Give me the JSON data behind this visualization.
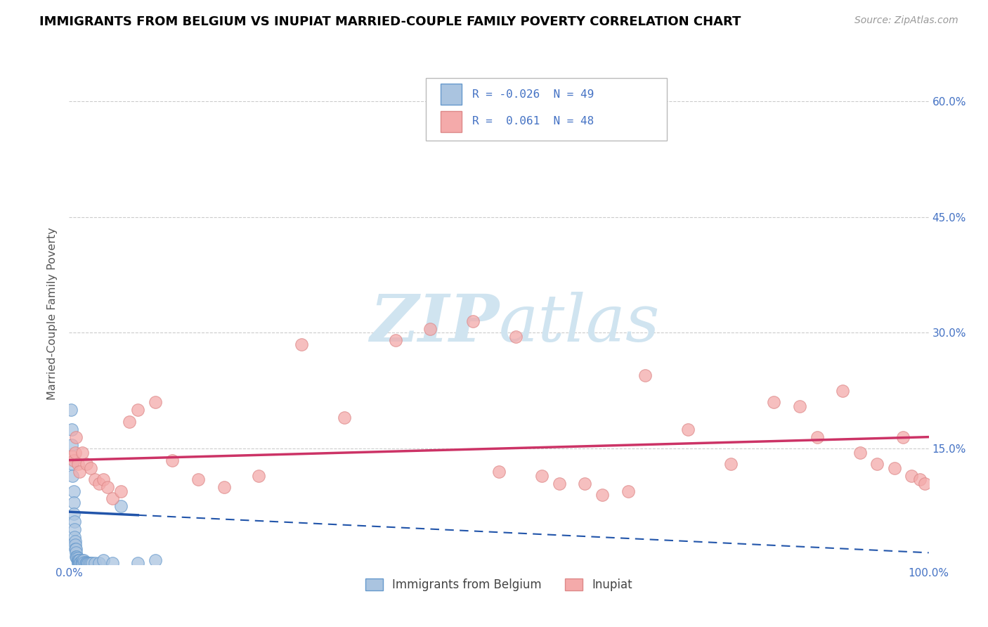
{
  "title": "IMMIGRANTS FROM BELGIUM VS INUPIAT MARRIED-COUPLE FAMILY POVERTY CORRELATION CHART",
  "source": "Source: ZipAtlas.com",
  "ylabel": "Married-Couple Family Poverty",
  "legend_labels": [
    "Immigrants from Belgium",
    "Inupiat"
  ],
  "legend_r": [
    -0.026,
    0.061
  ],
  "legend_n": [
    49,
    48
  ],
  "blue_color": "#aac4e0",
  "pink_color": "#f4aaaa",
  "blue_edge_color": "#6699cc",
  "pink_edge_color": "#dd8888",
  "blue_line_color": "#2255aa",
  "pink_line_color": "#cc3366",
  "xlim": [
    0,
    100
  ],
  "ylim": [
    0,
    65
  ],
  "yticks": [
    0,
    15,
    30,
    45,
    60
  ],
  "grid_color": "#cccccc",
  "background_color": "#ffffff",
  "title_color": "#000000",
  "axis_label_color": "#555555",
  "tick_color": "#888888",
  "right_tick_color": "#4472c4",
  "watermark_color": "#d0e4f0",
  "blue_scatter_x": [
    0.2,
    0.3,
    0.3,
    0.4,
    0.4,
    0.5,
    0.5,
    0.5,
    0.6,
    0.6,
    0.6,
    0.7,
    0.7,
    0.7,
    0.8,
    0.8,
    0.8,
    0.9,
    0.9,
    1.0,
    1.0,
    1.0,
    1.0,
    1.1,
    1.1,
    1.2,
    1.2,
    1.3,
    1.3,
    1.4,
    1.5,
    1.5,
    1.6,
    1.7,
    1.8,
    1.9,
    2.0,
    2.1,
    2.2,
    2.3,
    2.5,
    2.7,
    3.0,
    3.5,
    4.0,
    5.0,
    6.0,
    8.0,
    10.0
  ],
  "blue_scatter_y": [
    20.0,
    17.5,
    15.5,
    13.0,
    11.5,
    9.5,
    8.0,
    6.5,
    5.5,
    4.5,
    3.5,
    3.0,
    2.5,
    2.0,
    2.0,
    1.5,
    1.0,
    1.0,
    0.8,
    0.8,
    0.5,
    0.3,
    0.2,
    0.5,
    0.2,
    0.2,
    0.5,
    0.3,
    0.2,
    0.2,
    0.5,
    0.2,
    0.2,
    0.5,
    0.3,
    0.2,
    0.3,
    0.2,
    0.2,
    0.2,
    0.2,
    0.2,
    0.2,
    0.2,
    0.5,
    0.2,
    7.5,
    0.2,
    0.5
  ],
  "pink_scatter_x": [
    0.3,
    0.5,
    0.7,
    0.8,
    1.0,
    1.2,
    1.5,
    2.0,
    2.5,
    3.0,
    3.5,
    4.0,
    4.5,
    5.0,
    6.0,
    7.0,
    8.0,
    10.0,
    12.0,
    15.0,
    18.0,
    22.0,
    27.0,
    32.0,
    38.0,
    42.0,
    47.0,
    52.0,
    57.0,
    62.0,
    67.0,
    72.0,
    77.0,
    82.0,
    85.0,
    87.0,
    90.0,
    92.0,
    94.0,
    96.0,
    97.0,
    98.0,
    99.0,
    99.5,
    50.0,
    55.0,
    60.0,
    65.0
  ],
  "pink_scatter_y": [
    14.0,
    13.5,
    14.5,
    16.5,
    13.0,
    12.0,
    14.5,
    13.0,
    12.5,
    11.0,
    10.5,
    11.0,
    10.0,
    8.5,
    9.5,
    18.5,
    20.0,
    21.0,
    13.5,
    11.0,
    10.0,
    11.5,
    28.5,
    19.0,
    29.0,
    30.5,
    31.5,
    29.5,
    10.5,
    9.0,
    24.5,
    17.5,
    13.0,
    21.0,
    20.5,
    16.5,
    22.5,
    14.5,
    13.0,
    12.5,
    16.5,
    11.5,
    11.0,
    10.5,
    12.0,
    11.5,
    10.5,
    9.5
  ],
  "blue_trend_x0": 0.0,
  "blue_trend_y0": 6.8,
  "blue_trend_x1": 100.0,
  "blue_trend_y1": 1.5,
  "blue_solid_end": 8.0,
  "pink_trend_x0": 0.0,
  "pink_trend_y0": 13.5,
  "pink_trend_x1": 100.0,
  "pink_trend_y1": 16.5
}
